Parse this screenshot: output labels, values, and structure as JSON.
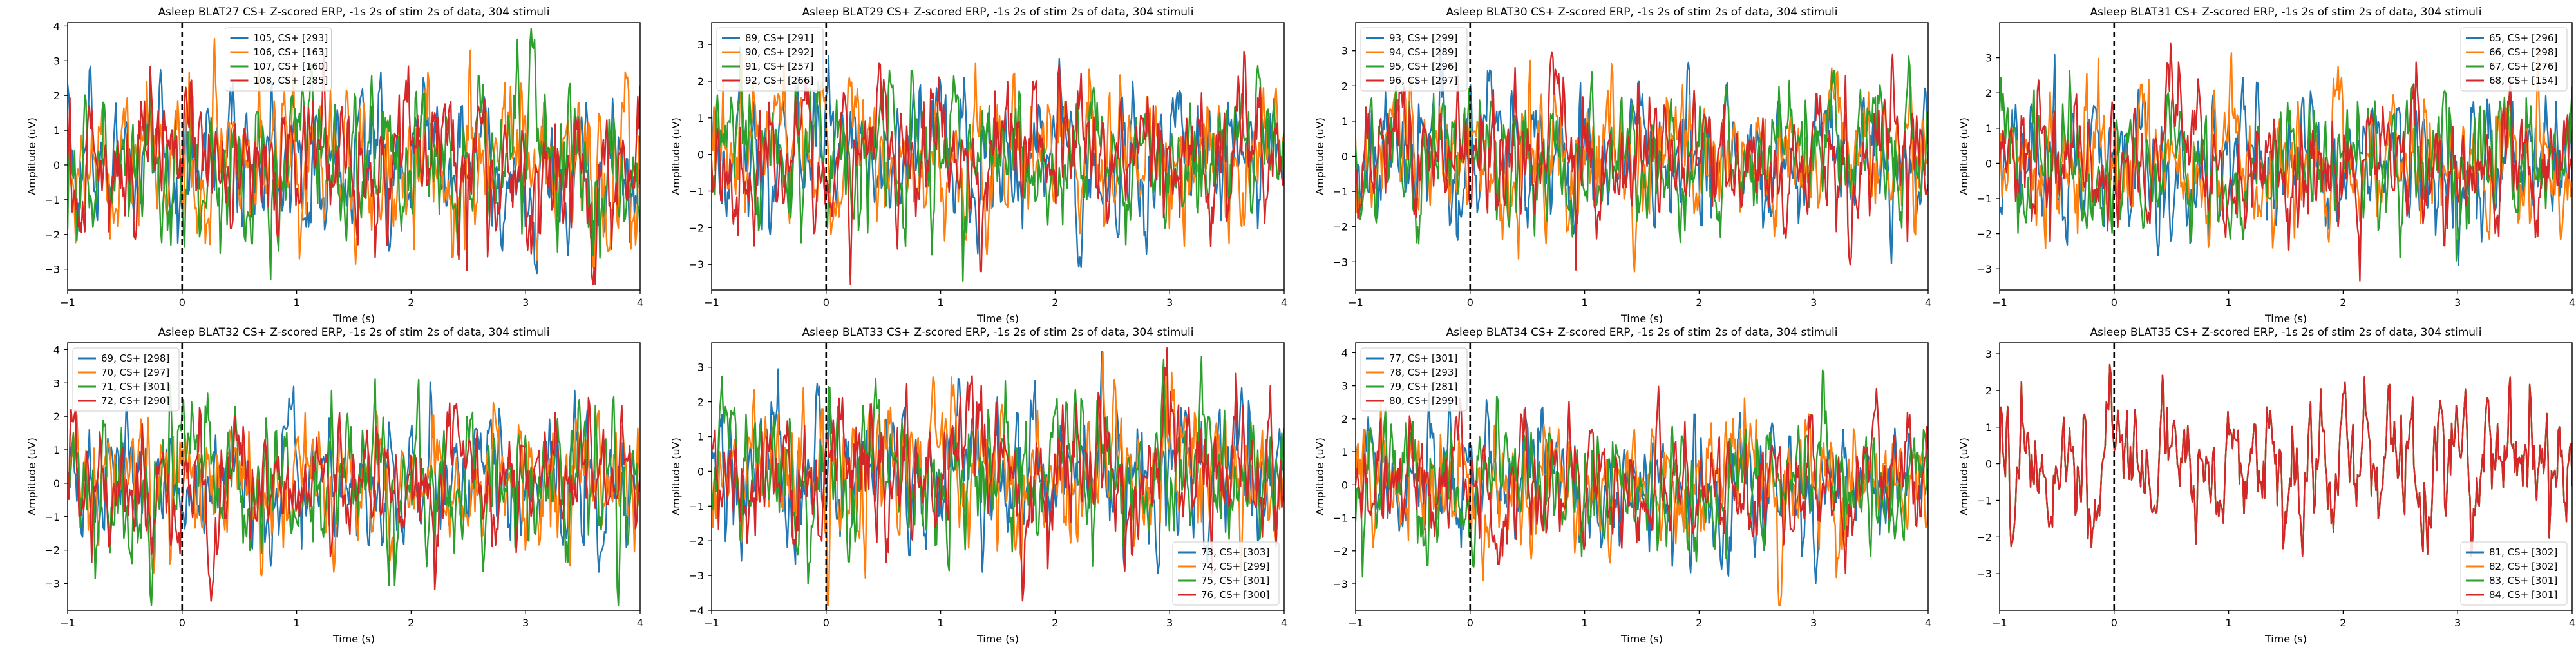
{
  "figure": {
    "colors": [
      "#1f77b4",
      "#ff7f0e",
      "#2ca02c",
      "#d62728"
    ]
  },
  "chart_data": [
    {
      "type": "line",
      "title": "Asleep BLAT27 CS+ Z-scored ERP, -1s 2s of stim 2s of data, 304 stimuli",
      "xlabel": "Time (s)",
      "ylabel": "Amplitude (uV)",
      "xlim": [
        -1,
        4
      ],
      "ylim": [
        -3.6,
        4.1
      ],
      "xticks": [
        -1,
        0,
        1,
        2,
        3,
        4
      ],
      "yticks": [
        -3,
        -2,
        -1,
        0,
        1,
        2,
        3,
        4
      ],
      "grid": false,
      "legend_position": "top-center",
      "stimulus_onset": 0,
      "series": [
        {
          "name": "105, CS+ [293]",
          "amplitude": 1.1,
          "seed": 11
        },
        {
          "name": "106, CS+ [163]",
          "amplitude": 1.2,
          "seed": 12
        },
        {
          "name": "107, CS+ [160]",
          "amplitude": 1.2,
          "seed": 13
        },
        {
          "name": "108, CS+ [285]",
          "amplitude": 1.1,
          "seed": 14
        }
      ]
    },
    {
      "type": "line",
      "title": "Asleep BLAT29 CS+ Z-scored ERP, -1s 2s of stim 2s of data, 304 stimuli",
      "xlabel": "Time (s)",
      "ylabel": "Amplitude (uV)",
      "xlim": [
        -1,
        4
      ],
      "ylim": [
        -3.7,
        3.6
      ],
      "xticks": [
        -1,
        0,
        1,
        2,
        3,
        4
      ],
      "yticks": [
        -3,
        -2,
        -1,
        0,
        1,
        2,
        3
      ],
      "grid": false,
      "legend_position": "top-left",
      "stimulus_onset": 0,
      "series": [
        {
          "name": "89, CS+ [291]",
          "amplitude": 1.0,
          "seed": 21
        },
        {
          "name": "90, CS+ [292]",
          "amplitude": 1.0,
          "seed": 22
        },
        {
          "name": "91, CS+ [257]",
          "amplitude": 1.0,
          "seed": 23
        },
        {
          "name": "92, CS+ [266]",
          "amplitude": 1.0,
          "seed": 24
        }
      ]
    },
    {
      "type": "line",
      "title": "Asleep BLAT30 CS+ Z-scored ERP, -1s 2s of stim 2s of data, 304 stimuli",
      "xlabel": "Time (s)",
      "ylabel": "Amplitude (uV)",
      "xlim": [
        -1,
        4
      ],
      "ylim": [
        -3.8,
        3.8
      ],
      "xticks": [
        -1,
        0,
        1,
        2,
        3,
        4
      ],
      "yticks": [
        -3,
        -2,
        -1,
        0,
        1,
        2,
        3
      ],
      "grid": false,
      "legend_position": "top-left",
      "stimulus_onset": 0,
      "series": [
        {
          "name": "93, CS+ [299]",
          "amplitude": 1.0,
          "seed": 31
        },
        {
          "name": "94, CS+ [289]",
          "amplitude": 1.0,
          "seed": 32
        },
        {
          "name": "95, CS+ [296]",
          "amplitude": 1.0,
          "seed": 33
        },
        {
          "name": "96, CS+ [297]",
          "amplitude": 1.0,
          "seed": 34
        }
      ]
    },
    {
      "type": "line",
      "title": "Asleep BLAT31 CS+ Z-scored ERP, -1s 2s of stim 2s of data, 304 stimuli",
      "xlabel": "Time (s)",
      "ylabel": "Amplitude (uV)",
      "xlim": [
        -1,
        4
      ],
      "ylim": [
        -3.6,
        4.0
      ],
      "xticks": [
        -1,
        0,
        1,
        2,
        3,
        4
      ],
      "yticks": [
        -3,
        -2,
        -1,
        0,
        1,
        2,
        3
      ],
      "grid": false,
      "legend_position": "top-right",
      "stimulus_onset": 0,
      "series": [
        {
          "name": "65, CS+ [296]",
          "amplitude": 1.0,
          "seed": 41
        },
        {
          "name": "66, CS+ [298]",
          "amplitude": 1.0,
          "seed": 42
        },
        {
          "name": "67, CS+ [276]",
          "amplitude": 1.0,
          "seed": 43
        },
        {
          "name": "68, CS+ [154]",
          "amplitude": 1.0,
          "seed": 44
        }
      ]
    },
    {
      "type": "line",
      "title": "Asleep BLAT32 CS+ Z-scored ERP, -1s 2s of stim 2s of data, 304 stimuli",
      "xlabel": "Time (s)",
      "ylabel": "Amplitude (uV)",
      "xlim": [
        -1,
        4
      ],
      "ylim": [
        -3.8,
        4.2
      ],
      "xticks": [
        -1,
        0,
        1,
        2,
        3,
        4
      ],
      "yticks": [
        -3,
        -2,
        -1,
        0,
        1,
        2,
        3,
        4
      ],
      "grid": false,
      "legend_position": "top-left",
      "stimulus_onset": 0,
      "series": [
        {
          "name": "69, CS+ [298]",
          "amplitude": 1.0,
          "seed": 51
        },
        {
          "name": "70, CS+ [297]",
          "amplitude": 1.0,
          "seed": 52
        },
        {
          "name": "71, CS+ [301]",
          "amplitude": 1.2,
          "seed": 53
        },
        {
          "name": "72, CS+ [290]",
          "amplitude": 1.0,
          "seed": 54
        }
      ]
    },
    {
      "type": "line",
      "title": "Asleep BLAT33 CS+ Z-scored ERP, -1s 2s of stim 2s of data, 304 stimuli",
      "xlabel": "Time (s)",
      "ylabel": "Amplitude (uV)",
      "xlim": [
        -1,
        4
      ],
      "ylim": [
        -4,
        3.7
      ],
      "xticks": [
        -1,
        0,
        1,
        2,
        3,
        4
      ],
      "yticks": [
        -4,
        -3,
        -2,
        -1,
        0,
        1,
        2,
        3
      ],
      "grid": false,
      "legend_position": "bottom-right",
      "stimulus_onset": 0,
      "series": [
        {
          "name": "73, CS+ [303]",
          "amplitude": 1.1,
          "seed": 61
        },
        {
          "name": "74, CS+ [299]",
          "amplitude": 1.1,
          "seed": 62
        },
        {
          "name": "75, CS+ [301]",
          "amplitude": 1.1,
          "seed": 63
        },
        {
          "name": "76, CS+ [300]",
          "amplitude": 1.1,
          "seed": 64
        }
      ]
    },
    {
      "type": "line",
      "title": "Asleep BLAT34 CS+ Z-scored ERP, -1s 2s of stim 2s of data, 304 stimuli",
      "xlabel": "Time (s)",
      "ylabel": "Amplitude (uV)",
      "xlim": [
        -1,
        4
      ],
      "ylim": [
        -3.8,
        4.3
      ],
      "xticks": [
        -1,
        0,
        1,
        2,
        3,
        4
      ],
      "yticks": [
        -3,
        -2,
        -1,
        0,
        1,
        2,
        3,
        4
      ],
      "grid": false,
      "legend_position": "top-left",
      "stimulus_onset": 0,
      "series": [
        {
          "name": "77, CS+ [301]",
          "amplitude": 1.0,
          "seed": 71
        },
        {
          "name": "78, CS+ [293]",
          "amplitude": 1.0,
          "seed": 72
        },
        {
          "name": "79, CS+ [281]",
          "amplitude": 1.0,
          "seed": 73
        },
        {
          "name": "80, CS+ [299]",
          "amplitude": 1.0,
          "seed": 74
        }
      ]
    },
    {
      "type": "line",
      "title": "Asleep BLAT35 CS+ Z-scored ERP, -1s 2s of stim 2s of data, 304 stimuli",
      "xlabel": "Time (s)",
      "ylabel": "Amplitude (uV)",
      "xlim": [
        -1,
        4
      ],
      "ylim": [
        -4,
        3.3
      ],
      "xticks": [
        -1,
        0,
        1,
        2,
        3,
        4
      ],
      "yticks": [
        -3,
        -2,
        -1,
        0,
        1,
        2,
        3
      ],
      "grid": false,
      "legend_position": "bottom-right",
      "stimulus_onset": 0,
      "series": [
        {
          "name": "81, CS+ [302]",
          "amplitude": 1.0,
          "seed": 81
        },
        {
          "name": "82, CS+ [302]",
          "amplitude": 1.0,
          "seed": 81
        },
        {
          "name": "83, CS+ [301]",
          "amplitude": 1.0,
          "seed": 81
        },
        {
          "name": "84, CS+ [301]",
          "amplitude": 1.0,
          "seed": 81
        }
      ]
    }
  ]
}
